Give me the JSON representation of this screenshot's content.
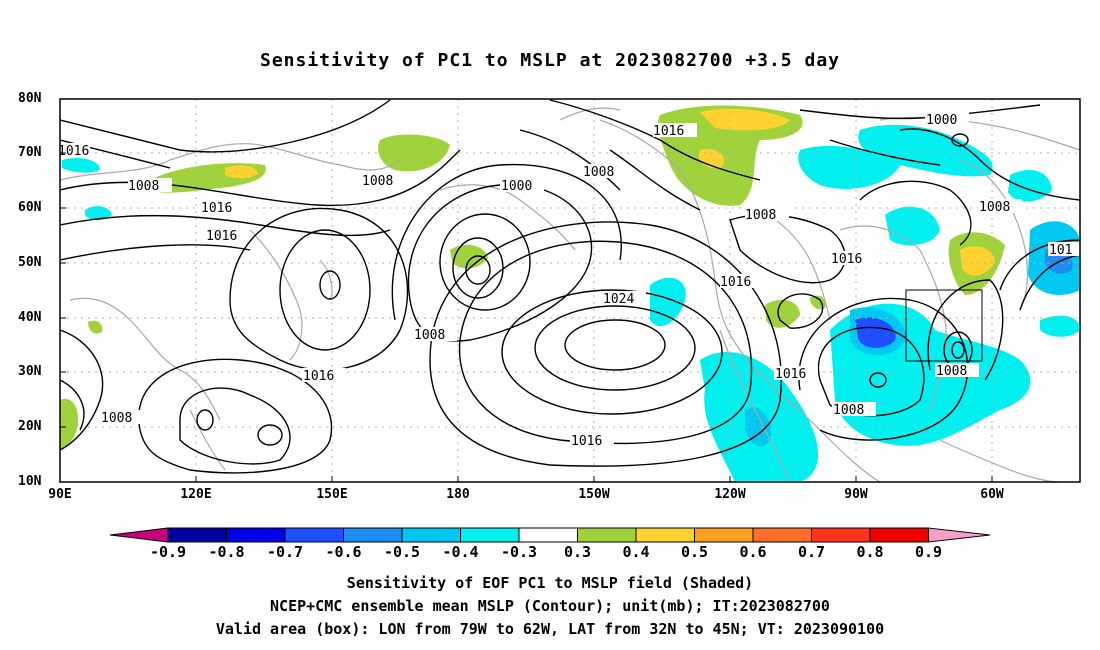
{
  "title": "Sensitivity of PC1 to MSLP at 2023082700 +3.5 day",
  "lat_labels": [
    "80N",
    "70N",
    "60N",
    "50N",
    "40N",
    "30N",
    "20N",
    "10N"
  ],
  "lon_labels": [
    "90E",
    "120E",
    "150E",
    "180",
    "150W",
    "120W",
    "90W",
    "60W"
  ],
  "contour_labels": [
    "1016",
    "1008",
    "1008",
    "1016",
    "1016",
    "1008",
    "1000",
    "1008",
    "1016",
    "1008",
    "1016",
    "1024",
    "1016",
    "1008",
    "1000",
    "1008",
    "1016",
    "1016",
    "1016",
    "1008",
    "1008",
    "1016",
    "101"
  ],
  "colorbar": {
    "labels": [
      "-0.9",
      "-0.8",
      "-0.7",
      "-0.6",
      "-0.5",
      "-0.4",
      "-0.3",
      "0.3",
      "0.4",
      "0.5",
      "0.6",
      "0.7",
      "0.8",
      "0.9"
    ],
    "colors": [
      "#c8007e",
      "#0000a0",
      "#0000e8",
      "#1e50ff",
      "#1e8cf0",
      "#00c8f0",
      "#00f0f0",
      "#ffffff",
      "#a0d23c",
      "#ffd232",
      "#ffa01e",
      "#ff6e28",
      "#ff321e",
      "#f00000",
      "#f5a0c8"
    ]
  },
  "valid_box": {
    "lon_w": 79,
    "lon_e": 62,
    "lat_s": 32,
    "lat_n": 45
  },
  "footer": {
    "line1": "Sensitivity of EOF PC1 to MSLP field (Shaded)",
    "line2": "NCEP+CMC ensemble mean MSLP (Contour); unit(mb); IT:2023082700",
    "line3": "Valid area (box): LON from 79W to 62W, LAT from 32N to 45N; VT: 2023090100"
  }
}
